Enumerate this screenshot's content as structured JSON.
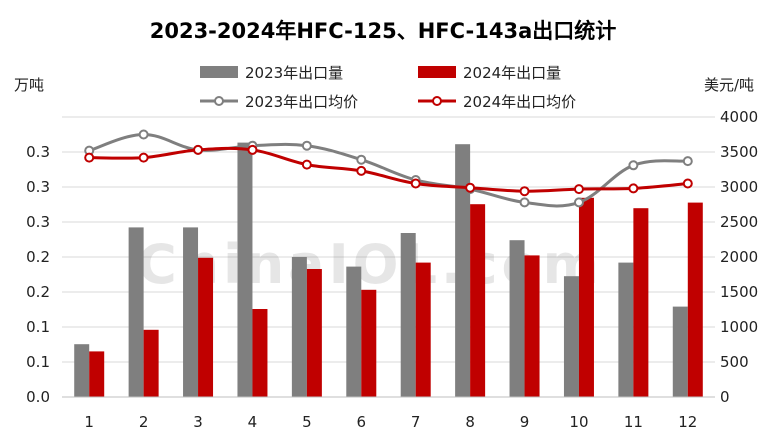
{
  "chart_data": {
    "type": "bar",
    "title": "2023-2024年HFC-125、HFC-143a出口统计",
    "ylabel_left": "万吨",
    "ylabel_right": "美元/吨",
    "categories": [
      "1",
      "2",
      "3",
      "4",
      "5",
      "6",
      "7",
      "8",
      "9",
      "10",
      "11",
      "12"
    ],
    "y_left_ticks": [
      "0.0",
      "0.1",
      "0.1",
      "0.2",
      "0.2",
      "0.3",
      "0.3",
      "0.3"
    ],
    "y_right_ticks": [
      "0",
      "500",
      "1000",
      "1500",
      "2000",
      "2500",
      "3000",
      "3500",
      "4000"
    ],
    "ylim_left": [
      0,
      0.35
    ],
    "ylim_right": [
      0,
      4000
    ],
    "series": [
      {
        "name": "2023年出口量",
        "kind": "bar",
        "axis": "left",
        "color": "#7f7f7f",
        "values": [
          0.066,
          0.212,
          0.212,
          0.318,
          0.175,
          0.163,
          0.205,
          0.316,
          0.196,
          0.151,
          0.168,
          0.113
        ]
      },
      {
        "name": "2024年出口量",
        "kind": "bar",
        "axis": "left",
        "color": "#c00000",
        "values": [
          0.057,
          0.084,
          0.174,
          0.11,
          0.16,
          0.134,
          0.168,
          0.241,
          0.177,
          0.249,
          0.236,
          0.243
        ]
      },
      {
        "name": "2023年出口均价",
        "kind": "line",
        "axis": "right",
        "color": "#7f7f7f",
        "values": [
          3520,
          3750,
          3530,
          3590,
          3590,
          3390,
          3100,
          2970,
          2780,
          2780,
          3310,
          3370
        ]
      },
      {
        "name": "2024年出口均价",
        "kind": "line",
        "axis": "right",
        "color": "#c00000",
        "values": [
          3420,
          3420,
          3530,
          3530,
          3320,
          3230,
          3050,
          2990,
          2940,
          2970,
          2980,
          3050
        ]
      }
    ],
    "legend_position": "top",
    "grid": true,
    "watermark": "ChinaIOL.com"
  }
}
